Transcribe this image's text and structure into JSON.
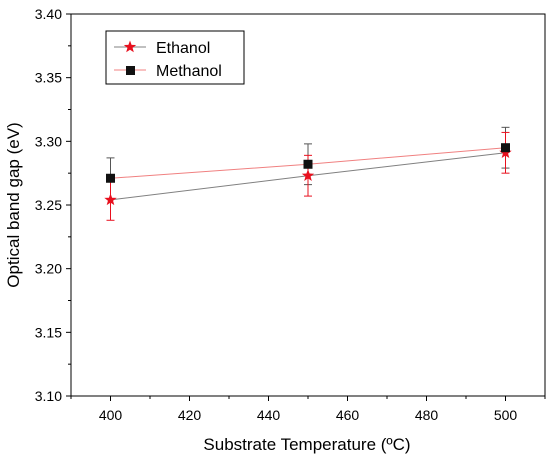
{
  "chart_data": {
    "type": "scatter",
    "title": "",
    "xlabel": "Substrate Temperature (ºC)",
    "ylabel": "Optical band gap (eV)",
    "xlim": [
      390,
      510
    ],
    "ylim": [
      3.1,
      3.4
    ],
    "xticks": [
      "400",
      "420",
      "440",
      "460",
      "480",
      "500"
    ],
    "yticks": [
      "3.10",
      "3.15",
      "3.20",
      "3.25",
      "3.30",
      "3.35",
      "3.40"
    ],
    "grid": false,
    "legend_position": "top-left",
    "x": [
      400,
      450,
      500
    ],
    "series": [
      {
        "name": "Ethanol",
        "marker": "star",
        "marker_color": "#e8101e",
        "line_color": "#808080",
        "errorbar_color": "#e8101e",
        "values": [
          3.254,
          3.273,
          3.291
        ],
        "errors": [
          0.016,
          0.016,
          0.016
        ]
      },
      {
        "name": "Methanol",
        "marker": "square",
        "marker_color": "#111111",
        "line_color": "#f08080",
        "errorbar_color": "#555555",
        "values": [
          3.271,
          3.282,
          3.295
        ],
        "errors": [
          0.016,
          0.016,
          0.016
        ]
      }
    ]
  }
}
